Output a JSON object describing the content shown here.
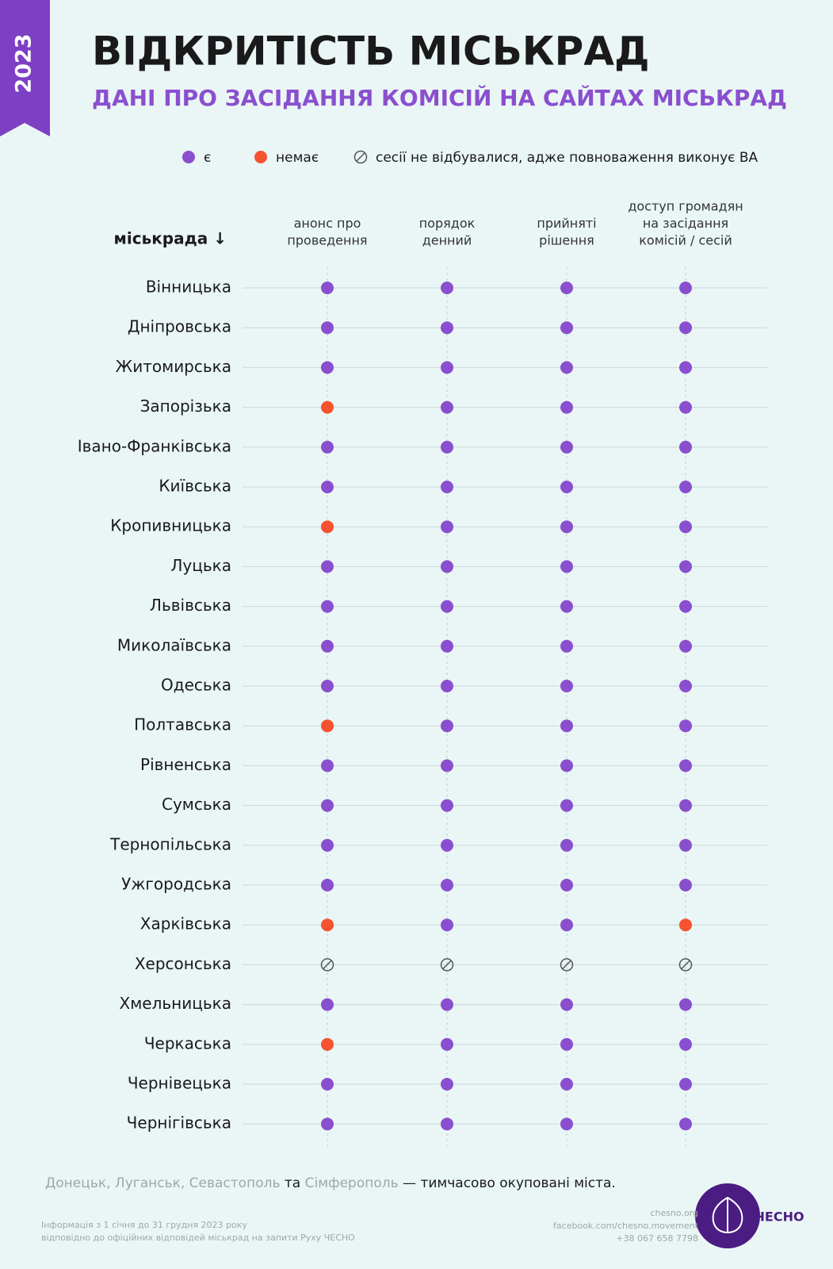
{
  "header": {
    "badge": "2023",
    "title": "ВІДКРИТІСТЬ МІСЬКРАД",
    "subtitle": "ДАНІ ПРО ЗАСІДАННЯ КОМІСІЙ НА САЙТАХ МІСЬКРАД"
  },
  "legend": [
    {
      "label": "є",
      "color": "#8a4fcf"
    },
    {
      "label": "немає",
      "color": "#f5522f"
    },
    {
      "label": "сесії не відбувалися, адже повноваження виконує ВА",
      "color": "#555555"
    }
  ],
  "table": {
    "row_header": "міськрада ↓",
    "columns": [
      [
        "анонс про",
        "проведення"
      ],
      [
        "порядок",
        "денний"
      ],
      [
        "прийняті",
        "рішення"
      ],
      [
        "доступ громадян",
        "на засідання",
        "комісій / сесій"
      ]
    ],
    "rows": [
      {
        "name": "Вінницька",
        "cells": [
          0,
          0,
          0,
          0
        ]
      },
      {
        "name": "Дніпровська",
        "cells": [
          0,
          0,
          0,
          0
        ]
      },
      {
        "name": "Житомирська",
        "cells": [
          0,
          0,
          0,
          0
        ]
      },
      {
        "name": "Запорізька",
        "cells": [
          1,
          0,
          0,
          0
        ]
      },
      {
        "name": "Івано-Франківська",
        "cells": [
          0,
          0,
          0,
          0
        ]
      },
      {
        "name": "Київська",
        "cells": [
          0,
          0,
          0,
          0
        ]
      },
      {
        "name": "Кропивницька",
        "cells": [
          1,
          0,
          0,
          0
        ]
      },
      {
        "name": "Луцька",
        "cells": [
          0,
          0,
          0,
          0
        ]
      },
      {
        "name": "Львівська",
        "cells": [
          0,
          0,
          0,
          0
        ]
      },
      {
        "name": "Миколаївська",
        "cells": [
          0,
          0,
          0,
          0
        ]
      },
      {
        "name": "Одеська",
        "cells": [
          0,
          0,
          0,
          0
        ]
      },
      {
        "name": "Полтавська",
        "cells": [
          1,
          0,
          0,
          0
        ]
      },
      {
        "name": "Рівненська",
        "cells": [
          0,
          0,
          0,
          0
        ]
      },
      {
        "name": "Сумська",
        "cells": [
          0,
          0,
          0,
          0
        ]
      },
      {
        "name": "Тернопільська",
        "cells": [
          0,
          0,
          0,
          0
        ]
      },
      {
        "name": "Ужгородська",
        "cells": [
          0,
          0,
          0,
          0
        ]
      },
      {
        "name": "Харківська",
        "cells": [
          1,
          0,
          0,
          1
        ]
      },
      {
        "name": "Херсонська",
        "cells": [
          2,
          2,
          2,
          2
        ]
      },
      {
        "name": "Хмельницька",
        "cells": [
          0,
          0,
          0,
          0
        ]
      },
      {
        "name": "Черкаська",
        "cells": [
          1,
          0,
          0,
          0
        ]
      },
      {
        "name": "Чернівецька",
        "cells": [
          0,
          0,
          0,
          0
        ]
      },
      {
        "name": "Чернігівська",
        "cells": [
          0,
          0,
          0,
          0
        ]
      }
    ]
  },
  "footer": {
    "note": [
      "Донецьк, Луганськ, Севастополь",
      " та ",
      "Сімферополь",
      " — тимчасово окуповані міста."
    ],
    "info": [
      "Інформація з 1 січня до 31 грудня 2023 року",
      "відповідно до офіційних відповідей міськрад на запити Руху ЧЕСНО"
    ],
    "contacts": [
      "chesno.org",
      "facebook.com/chesno.movement",
      "+38 067 658 7798"
    ],
    "logo": "ЧЕСНО"
  }
}
